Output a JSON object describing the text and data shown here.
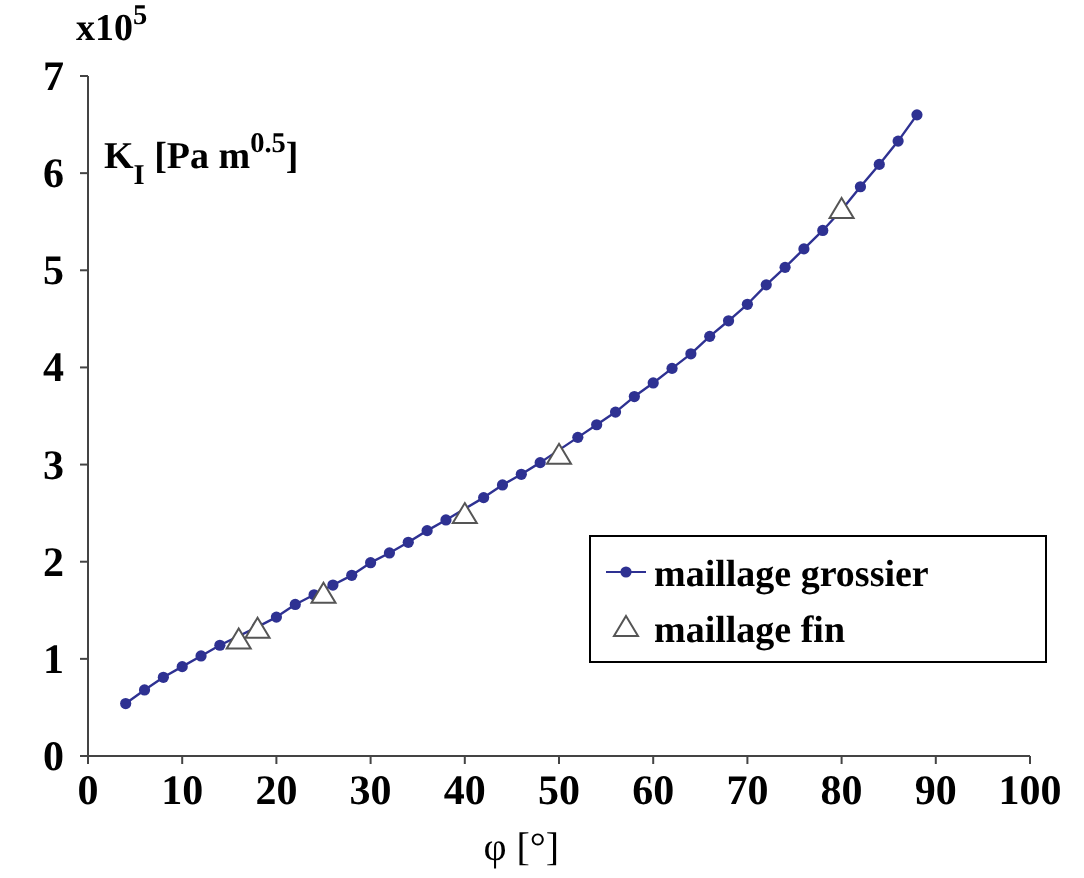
{
  "chart_data": {
    "type": "line",
    "xlabel": "φ [°]",
    "ylabel": "K$_{I}$ [Pa m$^{0.5}$]",
    "annotations": [
      "x10$^{5}$"
    ],
    "xlim": [
      0,
      100
    ],
    "xticks": [
      0,
      10,
      20,
      30,
      40,
      50,
      60,
      70,
      80,
      90,
      100
    ],
    "ylim": [
      0,
      7
    ],
    "yticks": [
      0,
      1,
      2,
      3,
      4,
      5,
      6,
      7
    ],
    "grid": false,
    "legend": "right",
    "series": [
      {
        "name": "maillage grossier",
        "color": "#2e3192",
        "type": "line",
        "marker": "circle",
        "x": [
          4,
          6,
          8,
          10,
          12,
          14,
          16,
          18,
          20,
          22,
          24,
          26,
          28,
          30,
          32,
          34,
          36,
          38,
          40,
          42,
          44,
          46,
          48,
          50,
          52,
          54,
          56,
          58,
          60,
          62,
          64,
          66,
          68,
          70,
          72,
          74,
          76,
          78,
          80,
          82,
          84,
          86,
          88
        ],
        "values": [
          0.54,
          0.68,
          0.81,
          0.92,
          1.03,
          1.14,
          null,
          1.33,
          1.43,
          1.56,
          1.66,
          1.76,
          1.86,
          1.99,
          2.09,
          2.2,
          2.32,
          2.43,
          null,
          2.66,
          2.79,
          2.9,
          3.02,
          null,
          3.28,
          3.41,
          3.54,
          3.7,
          3.84,
          3.99,
          4.14,
          4.32,
          4.48,
          4.65,
          4.85,
          5.03,
          5.22,
          5.41,
          5.62,
          5.86,
          6.09,
          6.33,
          6.6
        ]
      },
      {
        "name": "maillage fin",
        "color": "#555555",
        "type": "scatter",
        "marker": "triangle",
        "x": [
          16,
          18,
          25,
          40,
          50,
          80
        ],
        "values": [
          1.19,
          1.3,
          1.66,
          2.48,
          3.09,
          5.62
        ]
      }
    ]
  }
}
